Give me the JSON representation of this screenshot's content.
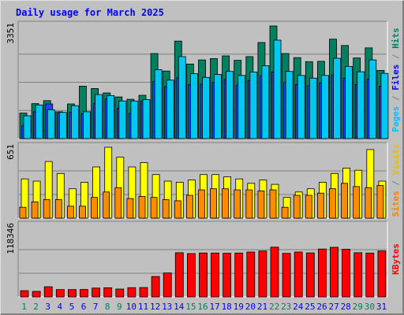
{
  "chart_data": {
    "type": "bar",
    "title": "Daily usage for March 2025",
    "categories": [
      "1",
      "2",
      "3",
      "4",
      "5",
      "6",
      "7",
      "8",
      "9",
      "10",
      "11",
      "12",
      "13",
      "14",
      "15",
      "16",
      "17",
      "18",
      "19",
      "20",
      "21",
      "22",
      "23",
      "24",
      "25",
      "26",
      "27",
      "28",
      "29",
      "30",
      "31"
    ],
    "weekend_days": [
      "1",
      "2",
      "8",
      "9",
      "15",
      "16",
      "22",
      "23",
      "29",
      "30"
    ],
    "panels": [
      {
        "id": "pages-files-hits",
        "y_max_label": "3351",
        "ylim": [
          0,
          3351
        ],
        "label_parts": [
          {
            "text": "Pages",
            "color": "#00c0ff"
          },
          {
            "text": " / ",
            "color": "#808080"
          },
          {
            "text": "Files",
            "color": "#0000ff"
          },
          {
            "text": " / ",
            "color": "#808080"
          },
          {
            "text": "Hits",
            "color": "#00805c"
          }
        ],
        "series": [
          {
            "name": "Hits",
            "color": "#008060",
            "values": [
              760,
              1040,
              1130,
              800,
              1030,
              1560,
              1490,
              1360,
              1240,
              1170,
              1290,
              2530,
              2010,
              2900,
              2220,
              2340,
              2380,
              2460,
              2330,
              2440,
              2860,
              3351,
              2530,
              2410,
              2290,
              2300,
              2960,
              2770,
              2400,
              2700,
              2030
            ]
          },
          {
            "name": "Files",
            "color": "#2040ff",
            "values": [
              380,
              800,
              1030,
              760,
              780,
              740,
              1040,
              1180,
              900,
              750,
              1120,
              1700,
              1550,
              1810,
              1610,
              1620,
              1670,
              1760,
              1590,
              1730,
              1870,
              1980,
              1670,
              1610,
              1570,
              1660,
              1890,
              1800,
              1610,
              1770,
              1560
            ]
          },
          {
            "name": "Pages",
            "color": "#00c8f0",
            "values": [
              680,
              1000,
              860,
              780,
              980,
              800,
              1310,
              1280,
              1120,
              1120,
              1160,
              2050,
              1740,
              2440,
              1930,
              1820,
              1910,
              2000,
              1880,
              1980,
              2170,
              2930,
              2000,
              1880,
              1800,
              1880,
              2390,
              2150,
              1990,
              2340,
              1940
            ]
          }
        ]
      },
      {
        "id": "visits-sites",
        "y_max_label": "651",
        "ylim": [
          0,
          651
        ],
        "label_parts": [
          {
            "text": "Sites",
            "color": "#ff8000"
          },
          {
            "text": " / ",
            "color": "#808080"
          },
          {
            "text": "Visits",
            "color": "#e0c000"
          }
        ],
        "series": [
          {
            "name": "Visits",
            "color": "#ffff00",
            "values": [
              360,
              340,
              520,
              410,
              270,
              330,
              470,
              651,
              560,
              470,
              510,
              400,
              340,
              330,
              350,
              400,
              400,
              380,
              360,
              320,
              350,
              310,
              190,
              240,
              270,
              330,
              410,
              460,
              440,
              630,
              340
            ]
          },
          {
            "name": "Sites",
            "color": "#ff8c00",
            "values": [
              100,
              150,
              170,
              170,
              110,
              110,
              190,
              240,
              280,
              180,
              200,
              190,
              170,
              160,
              210,
              260,
              270,
              270,
              260,
              260,
              250,
              260,
              100,
              210,
              210,
              230,
              270,
              320,
              290,
              280,
              300
            ]
          }
        ]
      },
      {
        "id": "kbytes",
        "y_max_label": "118346",
        "ylim": [
          0,
          118346
        ],
        "label_parts": [
          {
            "text": "KBytes",
            "color": "#ff0000"
          }
        ],
        "series": [
          {
            "name": "KBytes",
            "color": "#ff0000",
            "values": [
              10400,
              9200,
              16900,
              12200,
              12200,
              12300,
              14700,
              15200,
              13100,
              15400,
              15600,
              34000,
              40000,
              73800,
              72300,
              73400,
              73200,
              72800,
              73200,
              75000,
              76600,
              83100,
              72700,
              75000,
              73500,
              80000,
              82800,
              79500,
              73800,
              73200,
              76600
            ]
          }
        ]
      }
    ],
    "colors": {
      "background": "#c0c0c0",
      "frame_light": "#e0e0e0",
      "frame_dark": "#808080",
      "gridline": "#808080",
      "title": "#0000ff",
      "weekday_label": "#0000ff",
      "weekend_label": "#00805c",
      "y_label": "#000000"
    }
  }
}
